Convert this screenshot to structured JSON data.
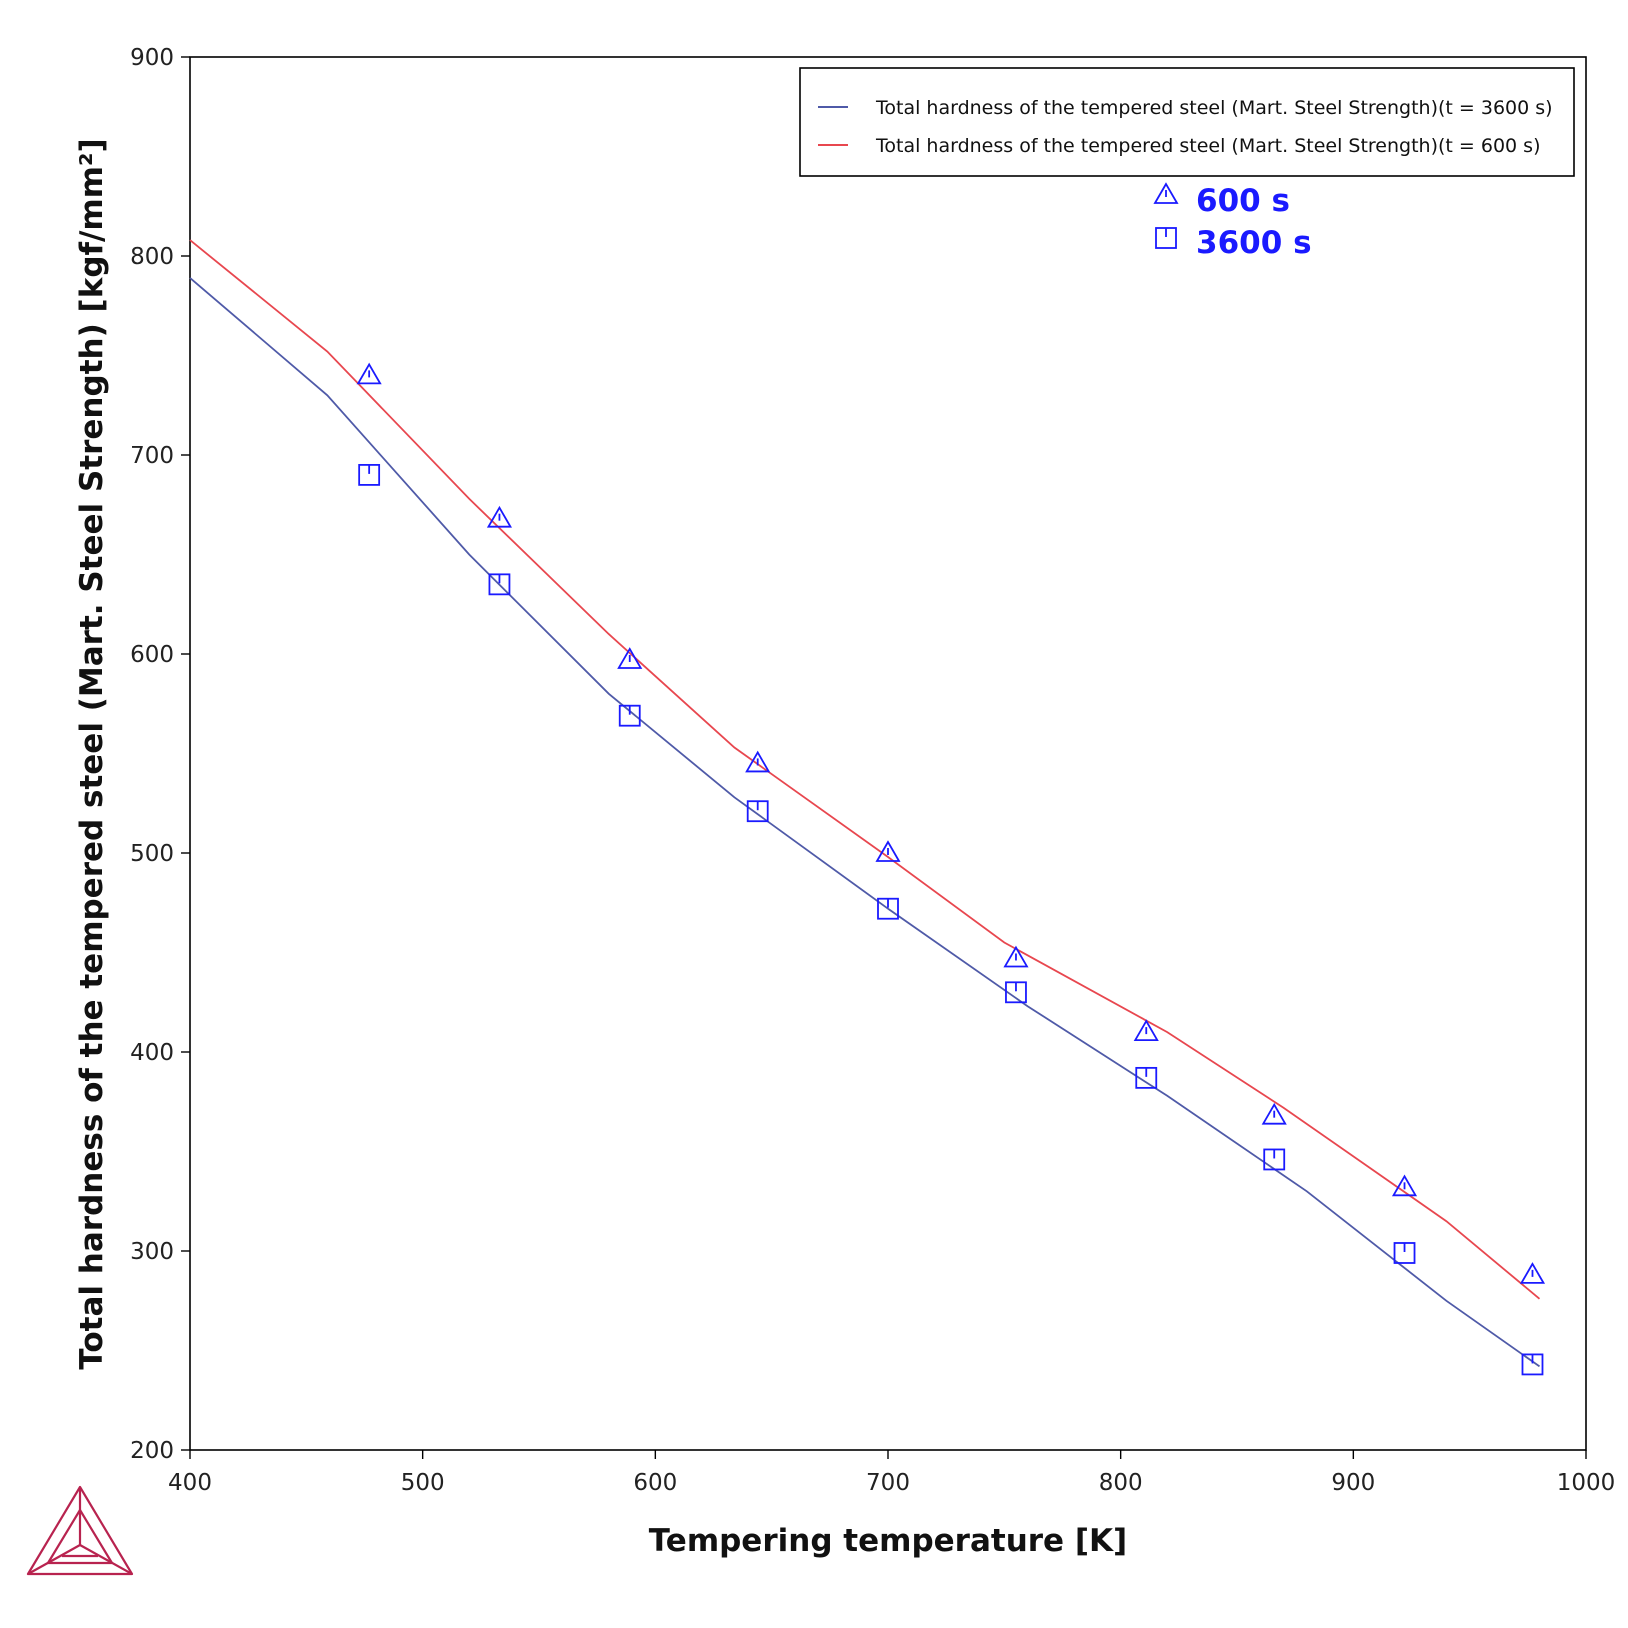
{
  "chart_data": {
    "type": "line",
    "title": "",
    "xlabel": "Tempering temperature [K]",
    "ylabel": "Total hardness of the tempered steel (Mart. Steel Strength) [kgf/mm²]",
    "xlim": [
      400,
      1000
    ],
    "ylim": [
      200,
      900
    ],
    "xticks": [
      400,
      500,
      600,
      700,
      800,
      900,
      1000
    ],
    "yticks": [
      200,
      300,
      400,
      500,
      600,
      700,
      800,
      900
    ],
    "grid": false,
    "legend_position": "top-right",
    "series": [
      {
        "name": "Total hardness of the tempered steel (Mart. Steel Strength)(t = 3600 s)",
        "kind": "line",
        "color": "#4f5aa8",
        "x": [
          400,
          459,
          520,
          580,
          634,
          700,
          760,
          820,
          880,
          940,
          980
        ],
        "y": [
          789,
          730,
          650,
          580,
          528,
          472,
          423,
          378,
          330,
          275,
          242
        ]
      },
      {
        "name": "Total hardness of the tempered steel (Mart. Steel Strength)(t = 600 s)",
        "kind": "line",
        "color": "#e8474f",
        "x": [
          400,
          459,
          520,
          580,
          634,
          700,
          750,
          820,
          870,
          940,
          980
        ],
        "y": [
          808,
          752,
          678,
          610,
          553,
          498,
          455,
          410,
          372,
          315,
          276
        ]
      },
      {
        "name": "600 s",
        "kind": "scatter",
        "marker": "triangle",
        "color": "#1a1aff",
        "x": [
          477,
          533,
          589,
          644,
          700,
          755,
          811,
          866,
          922,
          977
        ],
        "y": [
          740,
          668,
          597,
          545,
          500,
          447,
          410,
          368,
          332,
          288
        ]
      },
      {
        "name": "3600 s",
        "kind": "scatter",
        "marker": "square",
        "color": "#1a1aff",
        "x": [
          477,
          533,
          589,
          644,
          700,
          755,
          811,
          866,
          922,
          977
        ],
        "y": [
          690,
          635,
          569,
          521,
          472,
          430,
          387,
          346,
          299,
          243
        ]
      }
    ],
    "legend": [
      {
        "label": "Total hardness of the tempered steel (Mart. Steel Strength)(t = 3600 s)",
        "color": "#4f5aa8"
      },
      {
        "label": "Total hardness of the tempered steel (Mart. Steel Strength)(t = 600 s)",
        "color": "#e8474f"
      }
    ],
    "annotations": [
      {
        "label": "600 s",
        "marker": "triangle",
        "color": "#1a1aff"
      },
      {
        "label": "3600 s",
        "marker": "square",
        "color": "#1a1aff"
      }
    ]
  },
  "logo": {
    "icon": "thermo-calc-triangle-logo",
    "color": "#b8234f"
  }
}
